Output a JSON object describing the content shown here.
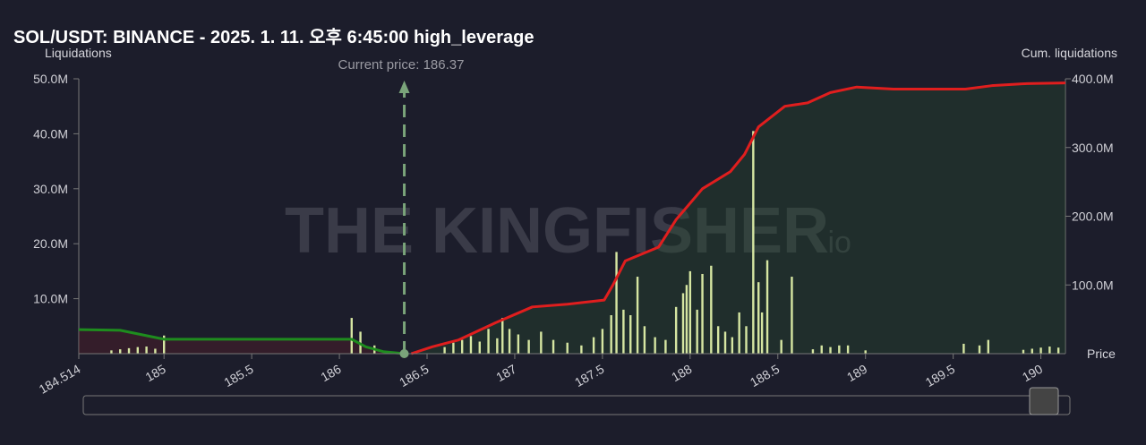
{
  "chart_data": {
    "type": "liquidation-map",
    "title": "SOL/USDT: BINANCE - 2025. 1. 11. 오후 6:45:00 high_leverage",
    "y_label": "Liquidations",
    "y2_label": "Cum. liquidations",
    "x_label": "Price",
    "watermark": "THE KINGFISHER",
    "watermark_suffix": ".io",
    "annotation": "Current price: 186.37",
    "current_price": 186.37,
    "xlim": [
      184.514,
      190.14
    ],
    "xticks": [
      184.514,
      185,
      185.5,
      186,
      186.5,
      187,
      187.5,
      188,
      188.5,
      189,
      189.5,
      190
    ],
    "ylim": [
      0,
      50
    ],
    "yticks": [
      {
        "value": 10,
        "label": "10.0M"
      },
      {
        "value": 20,
        "label": "20.0M"
      },
      {
        "value": 30,
        "label": "30.0M"
      },
      {
        "value": 40,
        "label": "40.0M"
      },
      {
        "value": 50,
        "label": "50.0M"
      }
    ],
    "y2lim": [
      0,
      400
    ],
    "y2ticks": [
      {
        "value": 100,
        "label": "100.0M"
      },
      {
        "value": 200,
        "label": "200.0M"
      },
      {
        "value": 300,
        "label": "300.0M"
      },
      {
        "value": 400,
        "label": "400.0M"
      }
    ],
    "bars": {
      "color": "#d6e6a2",
      "x": [
        184.7,
        184.75,
        184.8,
        184.85,
        184.9,
        184.95,
        185.0,
        186.07,
        186.12,
        186.2,
        186.6,
        186.65,
        186.7,
        186.75,
        186.8,
        186.85,
        186.9,
        186.93,
        186.97,
        187.02,
        187.08,
        187.15,
        187.22,
        187.3,
        187.38,
        187.45,
        187.5,
        187.55,
        187.58,
        187.62,
        187.66,
        187.7,
        187.74,
        187.8,
        187.86,
        187.92,
        187.96,
        187.98,
        188.0,
        188.04,
        188.07,
        188.12,
        188.16,
        188.2,
        188.24,
        188.28,
        188.32,
        188.36,
        188.39,
        188.41,
        188.44,
        188.52,
        188.58,
        188.7,
        188.75,
        188.8,
        188.85,
        188.9,
        189.0,
        189.56,
        189.65,
        189.7,
        189.9,
        189.95,
        190.0,
        190.05,
        190.1
      ],
      "values": [
        0.6,
        0.8,
        1.0,
        1.2,
        1.3,
        0.9,
        3.3,
        6.5,
        4.0,
        1.5,
        1.2,
        2.0,
        2.5,
        3.2,
        2.2,
        4.5,
        2.8,
        6.5,
        4.5,
        3.5,
        2.5,
        4.0,
        2.5,
        2.0,
        1.5,
        3.0,
        4.5,
        7.0,
        18.5,
        8.0,
        7.0,
        14.0,
        5.0,
        3.0,
        2.5,
        8.5,
        11.0,
        12.5,
        15.0,
        8.0,
        14.5,
        16.0,
        5.0,
        4.0,
        3.0,
        7.5,
        5.0,
        40.5,
        13.0,
        7.5,
        17.0,
        2.5,
        14.0,
        0.8,
        1.5,
        1.2,
        1.5,
        1.5,
        0.6,
        1.8,
        1.5,
        2.5,
        0.7,
        0.9,
        1.1,
        1.3,
        1.1
      ]
    },
    "lines": [
      {
        "axis": "y2",
        "color": "#e01e1e",
        "fill": "rgba(40,80,45,0.35)",
        "x": [
          186.41,
          186.53,
          186.68,
          186.89,
          187.1,
          187.3,
          187.51,
          187.56,
          187.63,
          187.82,
          187.92,
          188.07,
          188.23,
          188.31,
          188.39,
          188.54,
          188.67,
          188.8,
          188.95,
          189.16,
          189.57,
          189.72,
          189.92,
          190.14
        ],
        "values": [
          0,
          10,
          20,
          45,
          68,
          72,
          78,
          100,
          135,
          155,
          195,
          240,
          265,
          290,
          330,
          360,
          365,
          380,
          388,
          385,
          385,
          390,
          393,
          394
        ]
      },
      {
        "axis": "y2",
        "color": "#1e8c1e",
        "fill": "rgba(110,30,40,0.3)",
        "x": [
          184.514,
          184.75,
          185.0,
          186.07,
          186.15,
          186.25,
          186.37
        ],
        "values": [
          35,
          34,
          21,
          21,
          10,
          3,
          0
        ]
      }
    ]
  }
}
